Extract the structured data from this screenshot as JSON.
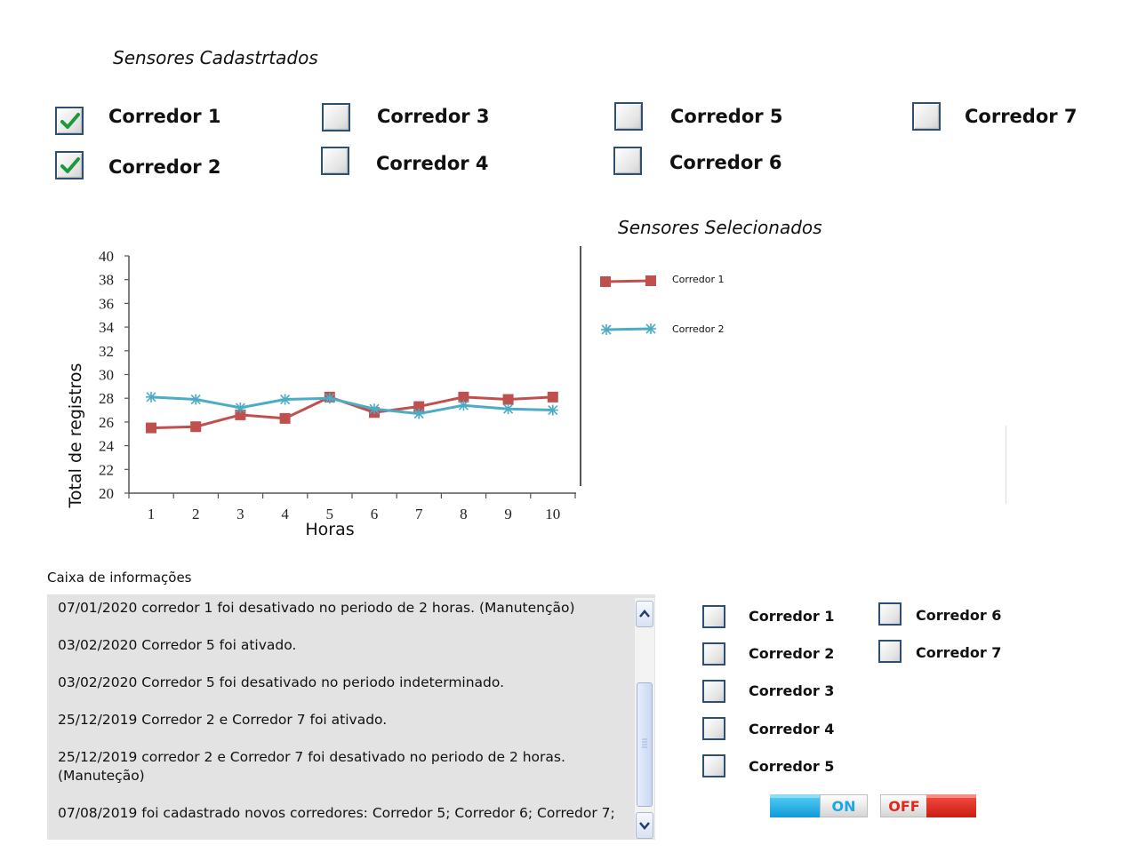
{
  "registered_title": "Sensores Cadastrtados",
  "registered_sensors": [
    {
      "label": "Corredor 1",
      "checked": true
    },
    {
      "label": "Corredor 2",
      "checked": true
    },
    {
      "label": "Corredor 3",
      "checked": false
    },
    {
      "label": "Corredor 4",
      "checked": false
    },
    {
      "label": "Corredor 5",
      "checked": false
    },
    {
      "label": "Corredor 6",
      "checked": false
    },
    {
      "label": "Corredor 7",
      "checked": false
    }
  ],
  "selected_title": "Sensores Selecionados",
  "chart_data": {
    "type": "line",
    "xlabel": "Horas",
    "ylabel": "Total de registros",
    "x": [
      1,
      2,
      3,
      4,
      5,
      6,
      7,
      8,
      9,
      10
    ],
    "ylim": [
      20,
      40
    ],
    "yticks": [
      20,
      22,
      24,
      26,
      28,
      30,
      32,
      34,
      36,
      38,
      40
    ],
    "series": [
      {
        "name": "Corredor 1",
        "color": "#c0504d",
        "marker": "square",
        "values": [
          25.5,
          25.6,
          26.6,
          26.3,
          28.1,
          26.8,
          27.3,
          28.1,
          27.9,
          28.1
        ]
      },
      {
        "name": "Corredor 2",
        "color": "#4bacc6",
        "marker": "asterisk",
        "values": [
          28.1,
          27.9,
          27.2,
          27.9,
          28.0,
          27.1,
          26.7,
          27.4,
          27.1,
          27.0
        ]
      }
    ],
    "grid": false,
    "legend_position": "right"
  },
  "info": {
    "title": "Caixa de informações",
    "items": [
      "07/01/2020 corredor 1 foi desativado no periodo de 2 horas. (Manutenção)",
      "03/02/2020 Corredor 5 foi ativado.",
      "03/02/2020 Corredor 5 foi desativado no periodo indeterminado.",
      "25/12/2019 Corredor 2 e Corredor 7 foi ativado.",
      "25/12/2019 corredor 2 e Corredor 7 foi desativado no periodo de 2 horas. (Manuteção)",
      "07/08/2019 foi cadastrado novos corredores: Corredor 5; Corredor 6; Corredor 7;"
    ]
  },
  "sensor_selection": [
    {
      "label": "Corredor 1",
      "checked": false
    },
    {
      "label": "Corredor 2",
      "checked": false
    },
    {
      "label": "Corredor 3",
      "checked": false
    },
    {
      "label": "Corredor 4",
      "checked": false
    },
    {
      "label": "Corredor 5",
      "checked": false
    },
    {
      "label": "Corredor 6",
      "checked": false
    },
    {
      "label": "Corredor 7",
      "checked": false
    }
  ],
  "toggles": {
    "on_label": "ON",
    "off_label": "OFF"
  },
  "colors": {
    "checkbox_border": "#2c4f73",
    "tick": "#1c9a3a",
    "on_blue": "#1aa9e3",
    "off_red": "#e0281b"
  }
}
